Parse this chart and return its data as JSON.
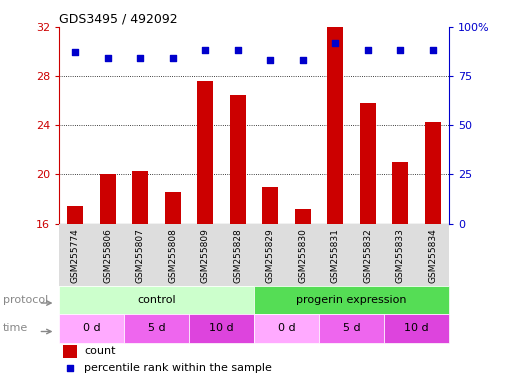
{
  "title": "GDS3495 / 492092",
  "samples": [
    "GSM255774",
    "GSM255806",
    "GSM255807",
    "GSM255808",
    "GSM255809",
    "GSM255828",
    "GSM255829",
    "GSM255830",
    "GSM255831",
    "GSM255832",
    "GSM255833",
    "GSM255834"
  ],
  "bar_heights": [
    17.4,
    20.0,
    20.3,
    18.6,
    27.6,
    26.5,
    19.0,
    17.2,
    32.0,
    25.8,
    21.0,
    24.3
  ],
  "percentile_ranks": [
    87,
    84,
    84,
    84,
    88,
    88,
    83,
    83,
    92,
    88,
    88,
    88
  ],
  "bar_color": "#cc0000",
  "dot_color": "#0000cc",
  "ylim_left": [
    16,
    32
  ],
  "ylim_right": [
    0,
    100
  ],
  "yticks_left": [
    16,
    20,
    24,
    28,
    32
  ],
  "yticks_right": [
    0,
    25,
    50,
    75,
    100
  ],
  "grid_lines": [
    20,
    24,
    28
  ],
  "protocol_groups": [
    {
      "label": "control",
      "start": 0,
      "end": 6,
      "color": "#ccffcc"
    },
    {
      "label": "progerin expression",
      "start": 6,
      "end": 12,
      "color": "#55dd55"
    }
  ],
  "time_groups": [
    {
      "label": "0 d",
      "start": 0,
      "end": 2,
      "color": "#ffaaff"
    },
    {
      "label": "5 d",
      "start": 2,
      "end": 4,
      "color": "#ee66ee"
    },
    {
      "label": "10 d",
      "start": 4,
      "end": 6,
      "color": "#dd44dd"
    },
    {
      "label": "0 d",
      "start": 6,
      "end": 8,
      "color": "#ffaaff"
    },
    {
      "label": "5 d",
      "start": 8,
      "end": 10,
      "color": "#ee66ee"
    },
    {
      "label": "10 d",
      "start": 10,
      "end": 12,
      "color": "#dd44dd"
    }
  ],
  "legend_count_color": "#cc0000",
  "legend_pct_color": "#0000cc",
  "background_color": "#ffffff",
  "tick_label_color_left": "#cc0000",
  "tick_label_color_right": "#0000cc",
  "label_color": "#888888",
  "xtick_bg_color": "#dddddd"
}
